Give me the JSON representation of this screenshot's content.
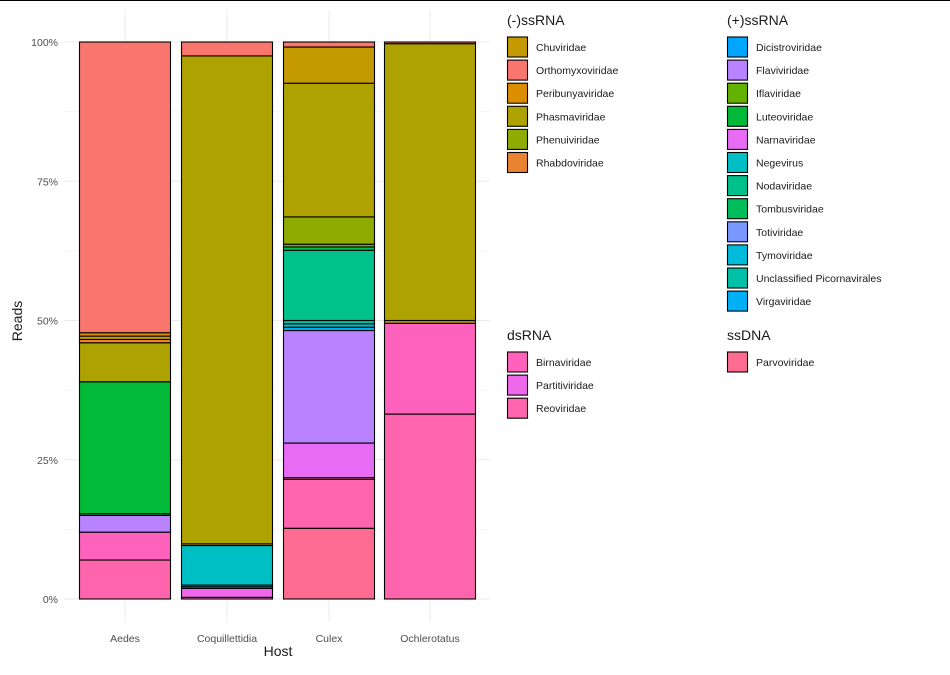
{
  "chart_data": {
    "type": "bar",
    "stacked": true,
    "xlabel": "Host",
    "ylabel": "Reads",
    "ylim": [
      0,
      100
    ],
    "y_tick_labels": [
      "0%",
      "25%",
      "50%",
      "75%",
      "100%"
    ],
    "y_ticks": [
      0,
      25,
      50,
      75,
      100
    ],
    "categories": [
      "Aedes",
      "Coquillettidia",
      "Culex",
      "Ochlerotatus"
    ],
    "grid": true,
    "legend_position": "right",
    "colors": {
      "Chuviridae": "#C49A00",
      "Orthomyxoviridae": "#F8766D",
      "Peribunyaviridae": "#DB8E00",
      "Phasmaviridae": "#AEA200",
      "Phenuiviridae": "#8FAA00",
      "Rhabdoviridae": "#EA8331",
      "Dicistroviridae": "#00A6FF",
      "Flaviviridae": "#B983FF",
      "Iflaviridae": "#64B200",
      "Luteoviridae": "#00BA38",
      "Narnaviridae": "#E76BF3",
      "Negevirus": "#00BFC4",
      "Nodaviridae": "#00C08B",
      "Tombusviridae": "#00BD5C",
      "Totiviridae": "#7997FF",
      "Tymoviridae": "#00BBDB",
      "Unclassified Picornavirales": "#00C1A7",
      "Virgaviridae": "#00B0F6",
      "Birnaviridae": "#FF62BC",
      "Partitiviridae": "#EF67EB",
      "Reoviridae": "#FF65AC",
      "Parvoviridae": "#FF6C91"
    },
    "legend_groups": [
      {
        "title": "(-)ssRNA",
        "items": [
          "Chuviridae",
          "Orthomyxoviridae",
          "Peribunyaviridae",
          "Phasmaviridae",
          "Phenuiviridae",
          "Rhabdoviridae"
        ]
      },
      {
        "title": "(+)ssRNA",
        "items": [
          "Dicistroviridae",
          "Flaviviridae",
          "Iflaviridae",
          "Luteoviridae",
          "Narnaviridae",
          "Negevirus",
          "Nodaviridae",
          "Tombusviridae",
          "Totiviridae",
          "Tymoviridae",
          "Unclassified Picornavirales",
          "Virgaviridae"
        ]
      },
      {
        "title": "dsRNA",
        "items": [
          "Birnaviridae",
          "Partitiviridae",
          "Reoviridae"
        ]
      },
      {
        "title": "ssDNA",
        "items": [
          "Parvoviridae"
        ]
      }
    ],
    "stacks": [
      {
        "category": "Aedes",
        "segments": [
          {
            "name": "Reoviridae",
            "value": 7.0
          },
          {
            "name": "Birnaviridae",
            "value": 5.0
          },
          {
            "name": "Flaviviridae",
            "value": 3.0
          },
          {
            "name": "Tombusviridae",
            "value": 0.3
          },
          {
            "name": "Luteoviridae",
            "value": 23.7
          },
          {
            "name": "Phasmaviridae",
            "value": 7.0
          },
          {
            "name": "Rhabdoviridae",
            "value": 0.6
          },
          {
            "name": "Chuviridae",
            "value": 0.6
          },
          {
            "name": "Peribunyaviridae",
            "value": 0.6
          },
          {
            "name": "Orthomyxoviridae",
            "value": 52.2
          }
        ]
      },
      {
        "category": "Coquillettidia",
        "segments": [
          {
            "name": "Reoviridae",
            "value": 0.3
          },
          {
            "name": "Partitiviridae",
            "value": 1.6
          },
          {
            "name": "Dicistroviridae",
            "value": 0.3
          },
          {
            "name": "Tymoviridae",
            "value": 0.3
          },
          {
            "name": "Negevirus",
            "value": 7.1
          },
          {
            "name": "Chuviridae",
            "value": 0.3
          },
          {
            "name": "Phasmaviridae",
            "value": 87.6
          },
          {
            "name": "Orthomyxoviridae",
            "value": 2.5
          }
        ]
      },
      {
        "category": "Culex",
        "segments": [
          {
            "name": "Parvoviridae",
            "value": 12.7
          },
          {
            "name": "Reoviridae",
            "value": 8.8
          },
          {
            "name": "Birnaviridae",
            "value": 0.3
          },
          {
            "name": "Narnaviridae",
            "value": 6.2
          },
          {
            "name": "Flaviviridae",
            "value": 20.2
          },
          {
            "name": "Virgaviridae",
            "value": 0.6
          },
          {
            "name": "Negevirus",
            "value": 0.6
          },
          {
            "name": "Unclassified Picornavirales",
            "value": 0.6
          },
          {
            "name": "Nodaviridae",
            "value": 12.6
          },
          {
            "name": "Tombusviridae",
            "value": 0.6
          },
          {
            "name": "Iflaviridae",
            "value": 0.5
          },
          {
            "name": "Phenuiviridae",
            "value": 4.9
          },
          {
            "name": "Phasmaviridae",
            "value": 24.0
          },
          {
            "name": "Chuviridae",
            "value": 6.5
          },
          {
            "name": "Orthomyxoviridae",
            "value": 0.9
          }
        ]
      },
      {
        "category": "Ochlerotatus",
        "segments": [
          {
            "name": "Reoviridae",
            "value": 33.2
          },
          {
            "name": "Birnaviridae",
            "value": 16.3
          },
          {
            "name": "Chuviridae",
            "value": 0.5
          },
          {
            "name": "Phasmaviridae",
            "value": 49.7
          },
          {
            "name": "Orthomyxoviridae",
            "value": 0.3
          }
        ]
      }
    ]
  }
}
